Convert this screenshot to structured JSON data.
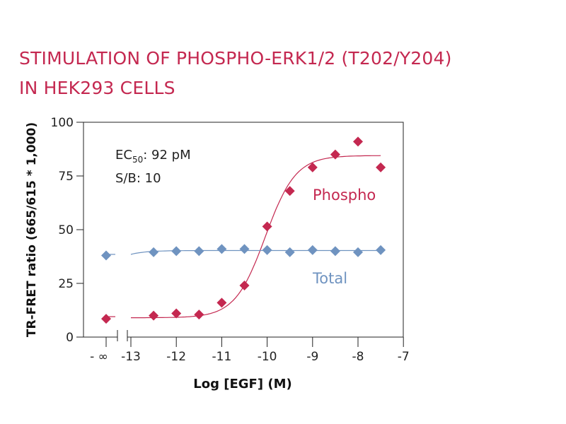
{
  "page": {
    "title_line1": "STIMULATION OF PHOSPHO-ERK1/2 (T202/Y204)",
    "title_line2": "IN HEK293 CELLS"
  },
  "chart_data": {
    "type": "scatter",
    "xlabel": "Log [EGF] (M)",
    "ylabel": "TR-FRET ratio (665/615 * 1,000)",
    "xlim": [
      -13,
      -7
    ],
    "ylim": [
      0,
      100
    ],
    "x_ticks": [
      -13,
      -12,
      -11,
      -10,
      -9,
      -8,
      -7
    ],
    "x_tick_labels": [
      "-13",
      "-12",
      "-11",
      "-10",
      "-9",
      "-8",
      "-7"
    ],
    "x_break_label": "- ∞",
    "y_ticks": [
      0,
      25,
      50,
      75,
      100
    ],
    "y_tick_labels": [
      "0",
      "25",
      "50",
      "75",
      "100"
    ],
    "grid": false,
    "annotations": {
      "ec50_prefix": "EC",
      "ec50_sub": "50",
      "ec50_value": ": 92 pM",
      "sb": "S/B: 10"
    },
    "colors": {
      "phospho": "#c42850",
      "total": "#6f93c0",
      "title": "#c42850"
    },
    "series": [
      {
        "name": "Phospho",
        "color": "#c42850",
        "zero_dose_value": 8.5,
        "x": [
          -12.5,
          -12,
          -11.5,
          -11,
          -10.5,
          -10,
          -9.5,
          -9,
          -8.5,
          -8,
          -7.5
        ],
        "y": [
          10,
          11,
          10.5,
          16,
          24,
          51.5,
          68,
          79,
          85,
          91,
          79
        ],
        "fit": {
          "bottom": 9,
          "top": 84.5,
          "logEC50": -10.04,
          "hill": 1.3
        }
      },
      {
        "name": "Total",
        "color": "#6f93c0",
        "zero_dose_value": 38,
        "x": [
          -12.5,
          -12,
          -11.5,
          -11,
          -10.5,
          -10,
          -9.5,
          -9,
          -8.5,
          -8,
          -7.5
        ],
        "y": [
          39.5,
          40,
          40,
          41,
          41,
          40.5,
          39.5,
          40.5,
          40,
          39.5,
          40.5
        ],
        "fit": {
          "level": 40.3,
          "start": 38.5
        }
      }
    ]
  }
}
